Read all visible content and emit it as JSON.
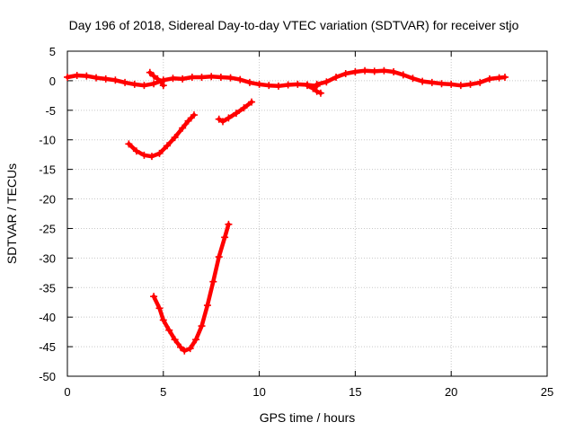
{
  "chart_data": {
    "type": "scatter",
    "title": "Day 196 of 2018, Sidereal Day-to-day VTEC variation (SDTVAR) for receiver stjo",
    "xlabel": "GPS time / hours",
    "ylabel": "SDTVAR / TECUs",
    "xlim": [
      0,
      25
    ],
    "ylim": [
      -50,
      5
    ],
    "xticks": [
      0,
      5,
      10,
      15,
      20,
      25
    ],
    "yticks": [
      5,
      0,
      -5,
      -10,
      -15,
      -20,
      -25,
      -30,
      -35,
      -40,
      -45,
      -50
    ],
    "grid": true,
    "legend": "none",
    "marker": "plus",
    "color": "#ff0000",
    "series": [
      {
        "points": [
          [
            0.0,
            0.6
          ],
          [
            0.5,
            0.9
          ],
          [
            1.0,
            0.8
          ],
          [
            1.5,
            0.5
          ],
          [
            2.0,
            0.3
          ],
          [
            2.5,
            0.1
          ],
          [
            3.0,
            -0.3
          ],
          [
            3.5,
            -0.6
          ],
          [
            4.0,
            -0.8
          ],
          [
            4.5,
            -0.5
          ],
          [
            5.0,
            0.1
          ],
          [
            5.5,
            0.4
          ],
          [
            6.0,
            0.3
          ],
          [
            6.5,
            0.6
          ],
          [
            7.0,
            0.6
          ],
          [
            7.5,
            0.7
          ],
          [
            8.0,
            0.6
          ],
          [
            8.5,
            0.5
          ],
          [
            9.0,
            0.2
          ],
          [
            9.5,
            -0.3
          ],
          [
            10.0,
            -0.6
          ],
          [
            10.5,
            -0.8
          ],
          [
            11.0,
            -0.9
          ],
          [
            11.5,
            -0.7
          ],
          [
            12.0,
            -0.6
          ],
          [
            12.5,
            -0.7
          ],
          [
            13.0,
            -0.9
          ]
        ]
      },
      {
        "points": [
          [
            4.3,
            1.4
          ],
          [
            4.5,
            0.8
          ],
          [
            4.7,
            0.3
          ],
          [
            4.9,
            -0.3
          ],
          [
            5.0,
            -0.8
          ]
        ]
      },
      {
        "points": [
          [
            12.5,
            -0.8
          ],
          [
            12.8,
            -1.3
          ],
          [
            13.0,
            -1.8
          ],
          [
            13.2,
            -2.1
          ]
        ]
      },
      {
        "points": [
          [
            13.0,
            -0.6
          ],
          [
            13.5,
            -0.2
          ],
          [
            14.0,
            0.6
          ],
          [
            14.5,
            1.2
          ],
          [
            15.0,
            1.5
          ],
          [
            15.5,
            1.7
          ],
          [
            16.0,
            1.6
          ],
          [
            16.5,
            1.7
          ],
          [
            17.0,
            1.5
          ],
          [
            17.5,
            1.0
          ],
          [
            18.0,
            0.4
          ],
          [
            18.5,
            -0.1
          ],
          [
            19.0,
            -0.3
          ],
          [
            19.5,
            -0.5
          ],
          [
            20.0,
            -0.6
          ],
          [
            20.5,
            -0.8
          ],
          [
            21.0,
            -0.6
          ],
          [
            21.5,
            -0.3
          ],
          [
            22.0,
            0.3
          ],
          [
            22.5,
            0.5
          ],
          [
            22.8,
            0.6
          ]
        ]
      },
      {
        "points": [
          [
            3.2,
            -10.7
          ],
          [
            3.6,
            -11.9
          ],
          [
            4.0,
            -12.6
          ],
          [
            4.4,
            -12.8
          ],
          [
            4.8,
            -12.3
          ],
          [
            5.2,
            -11.0
          ],
          [
            5.6,
            -9.6
          ],
          [
            6.0,
            -8.0
          ],
          [
            6.3,
            -6.8
          ],
          [
            6.6,
            -5.8
          ]
        ]
      },
      {
        "points": [
          [
            7.9,
            -6.5
          ],
          [
            8.1,
            -6.9
          ],
          [
            8.4,
            -6.3
          ],
          [
            8.8,
            -5.5
          ],
          [
            9.2,
            -4.6
          ],
          [
            9.6,
            -3.6
          ]
        ]
      },
      {
        "points": [
          [
            4.5,
            -36.5
          ],
          [
            4.8,
            -38.5
          ],
          [
            5.0,
            -40.5
          ],
          [
            5.3,
            -42.2
          ],
          [
            5.6,
            -43.8
          ],
          [
            5.9,
            -45.1
          ],
          [
            6.1,
            -45.7
          ],
          [
            6.4,
            -45.3
          ],
          [
            6.7,
            -43.8
          ],
          [
            7.0,
            -41.5
          ],
          [
            7.3,
            -38.0
          ],
          [
            7.6,
            -34.0
          ],
          [
            7.9,
            -29.8
          ],
          [
            8.2,
            -26.5
          ],
          [
            8.4,
            -24.3
          ]
        ]
      }
    ]
  }
}
